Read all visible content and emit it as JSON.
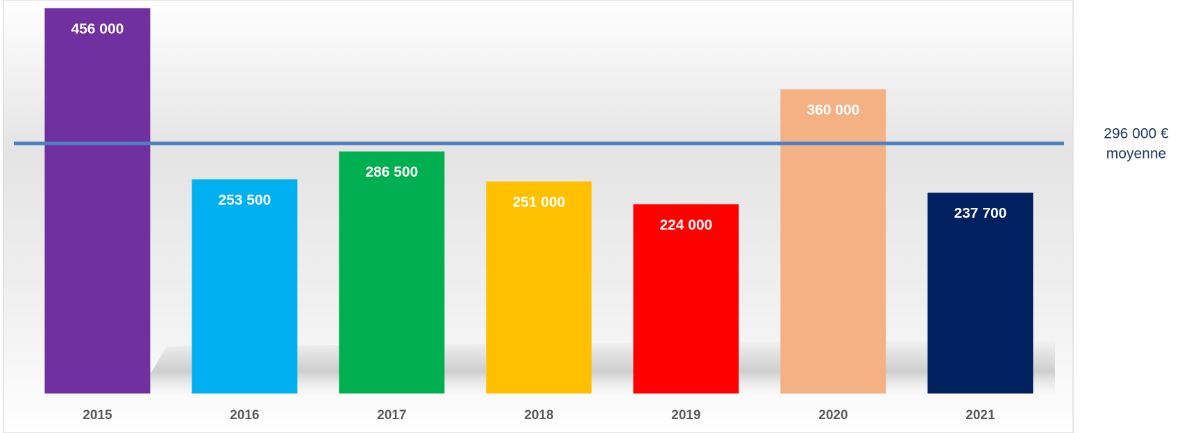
{
  "chart_data": {
    "type": "bar",
    "categories": [
      "2015",
      "2016",
      "2017",
      "2018",
      "2019",
      "2020",
      "2021"
    ],
    "values": [
      456000,
      253500,
      286500,
      251000,
      224000,
      360000,
      237700
    ],
    "value_labels": [
      "456 000",
      "253 500",
      "286 500",
      "251 000",
      "224 000",
      "360 000",
      "237 700"
    ],
    "colors": [
      "#7030a0",
      "#00b0f0",
      "#00b050",
      "#ffc000",
      "#ff0000",
      "#f4b183",
      "#002060"
    ],
    "ylim": [
      0,
      460000
    ],
    "average": 296000,
    "average_label": "296 000 €",
    "average_name": "moyenne",
    "average_color": "#4f7fc0"
  }
}
